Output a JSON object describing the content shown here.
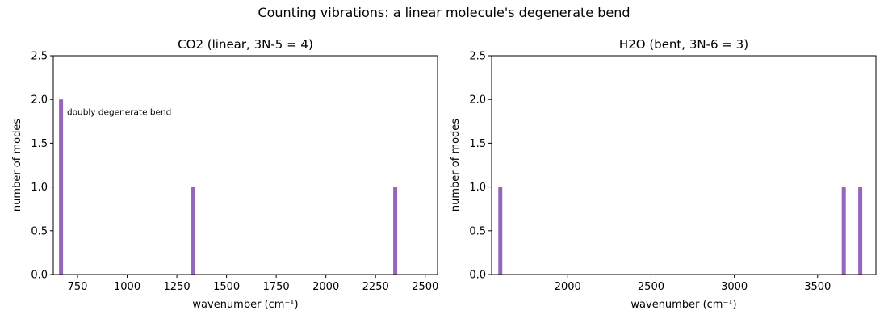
{
  "figure_title": "Counting vibrations: a linear molecule's degenerate bend",
  "colors": {
    "bar": "#9467bd",
    "axis": "#000000",
    "background": "#ffffff"
  },
  "chart_data": [
    {
      "type": "bar",
      "title": "CO2 (linear, 3N-5 = 4)",
      "xlabel": "wavenumber (cm⁻¹)",
      "ylabel": "number of modes",
      "xlim": [
        628,
        2562
      ],
      "ylim": [
        0,
        2.5
      ],
      "xticks": [
        750,
        1000,
        1250,
        1500,
        1750,
        2000,
        2250,
        2500
      ],
      "yticks": [
        "0.0",
        "0.5",
        "1.0",
        "1.5",
        "2.0",
        "2.5"
      ],
      "x": [
        667,
        1333,
        2349
      ],
      "values": [
        2,
        1,
        1
      ],
      "annotations": [
        {
          "text": "doubly degenerate bend",
          "x": 697,
          "y": 1.85
        }
      ],
      "grid": false
    },
    {
      "type": "bar",
      "title": "H2O (bent, 3N-6 = 3)",
      "xlabel": "wavenumber (cm⁻¹)",
      "ylabel": "number of modes",
      "xlim": [
        1543,
        3850
      ],
      "ylim": [
        0,
        2.5
      ],
      "xticks": [
        2000,
        2500,
        3000,
        3500
      ],
      "yticks": [
        "0.0",
        "0.5",
        "1.0",
        "1.5",
        "2.0",
        "2.5"
      ],
      "x": [
        1595,
        3657,
        3756
      ],
      "values": [
        1,
        1,
        1
      ],
      "annotations": [],
      "grid": false
    }
  ]
}
